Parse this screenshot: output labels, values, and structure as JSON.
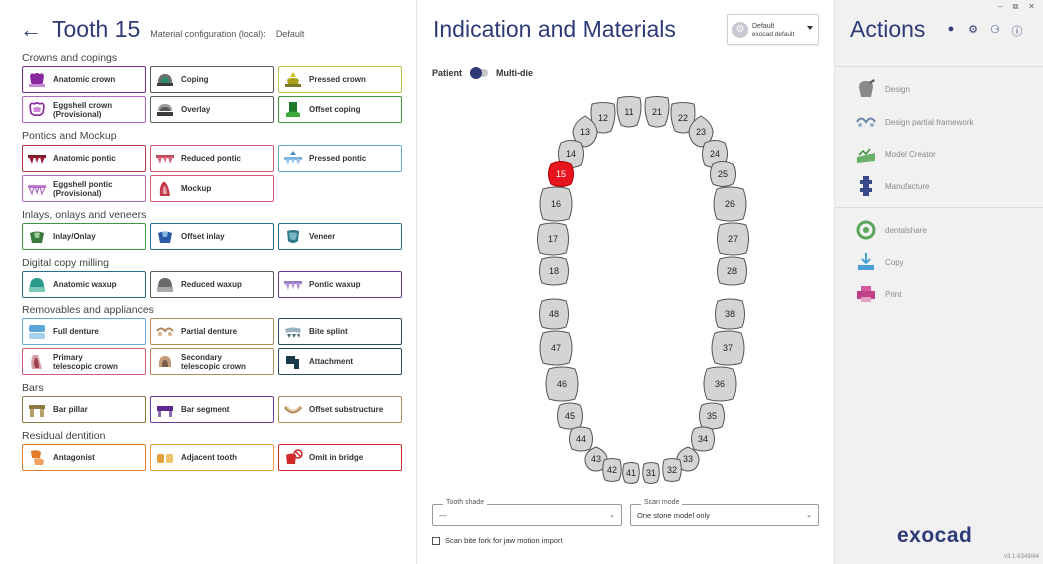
{
  "header": {
    "title": "Tooth 15",
    "material_label": "Material configuration (local):",
    "material_value": "Default"
  },
  "sections": {
    "crowns": "Crowns and copings",
    "pontics": "Pontics and Mockup",
    "inlays": "Inlays, onlays and veneers",
    "digital": "Digital copy milling",
    "removables": "Removables and appliances",
    "bars": "Bars",
    "residual": "Residual dentition"
  },
  "buttons": {
    "anatomic_crown": "Anatomic crown",
    "coping": "Coping",
    "pressed_crown": "Pressed crown",
    "eggshell_crown_1": "Eggshell crown",
    "eggshell_crown_2": "(Provisional)",
    "overlay": "Overlay",
    "offset_coping": "Offset coping",
    "anatomic_pontic": "Anatomic pontic",
    "reduced_pontic": "Reduced pontic",
    "pressed_pontic": "Pressed pontic",
    "eggshell_pontic_1": "Eggshell pontic",
    "eggshell_pontic_2": "(Provisional)",
    "mockup": "Mockup",
    "inlay_onlay": "Inlay/Onlay",
    "offset_inlay": "Offset inlay",
    "veneer": "Veneer",
    "anatomic_waxup": "Anatomic waxup",
    "reduced_waxup": "Reduced waxup",
    "pontic_waxup": "Pontic waxup",
    "full_denture": "Full denture",
    "partial_denture": "Partial denture",
    "bite_splint": "Bite splint",
    "primary_tele_1": "Primary",
    "primary_tele_2": "telescopic crown",
    "secondary_tele_1": "Secondary",
    "secondary_tele_2": "telescopic crown",
    "attachment": "Attachment",
    "bar_pillar": "Bar pillar",
    "bar_segment": "Bar segment",
    "offset_substructure": "Offset substructure",
    "antagonist": "Antagonist",
    "adjacent_tooth": "Adjacent tooth",
    "omit_in_bridge": "Omit in bridge"
  },
  "center": {
    "title": "Indication and Materials",
    "preset_label": "Default",
    "preset_sub": "exocad default",
    "toggle_left": "Patient",
    "toggle_right": "Multi-die",
    "tooth_shade_label": "Tooth shade",
    "tooth_shade_value": "---",
    "scan_mode_label": "Scan mode",
    "scan_mode_value": "One stone model only",
    "checkbox_label": "Scan bite fork for jaw motion import",
    "selected_tooth": "15",
    "selected_color": "#e8141e"
  },
  "teeth": {
    "t11": "11",
    "t12": "12",
    "t13": "13",
    "t14": "14",
    "t15": "15",
    "t16": "16",
    "t17": "17",
    "t18": "18",
    "t21": "21",
    "t22": "22",
    "t23": "23",
    "t24": "24",
    "t25": "25",
    "t26": "26",
    "t27": "27",
    "t28": "28",
    "t31": "31",
    "t32": "32",
    "t33": "33",
    "t34": "34",
    "t35": "35",
    "t36": "36",
    "t37": "37",
    "t38": "38",
    "t41": "41",
    "t42": "42",
    "t43": "43",
    "t44": "44",
    "t45": "45",
    "t46": "46",
    "t47": "47",
    "t48": "48"
  },
  "right": {
    "title": "Actions",
    "actions": {
      "design": "Design",
      "design_partial": "Design partial framework",
      "model_creator": "Model Creator",
      "manufacture": "Manufacture",
      "dentalshare": "dentalshare",
      "copy": "Copy",
      "print": "Print"
    },
    "logo": "exocad",
    "version": "v3.1-8349/64"
  },
  "icons": {
    "back": "arrow-left-icon",
    "user": "user-icon",
    "settings": "gear-icon",
    "notifications": "bell-icon",
    "help": "help-icon"
  }
}
